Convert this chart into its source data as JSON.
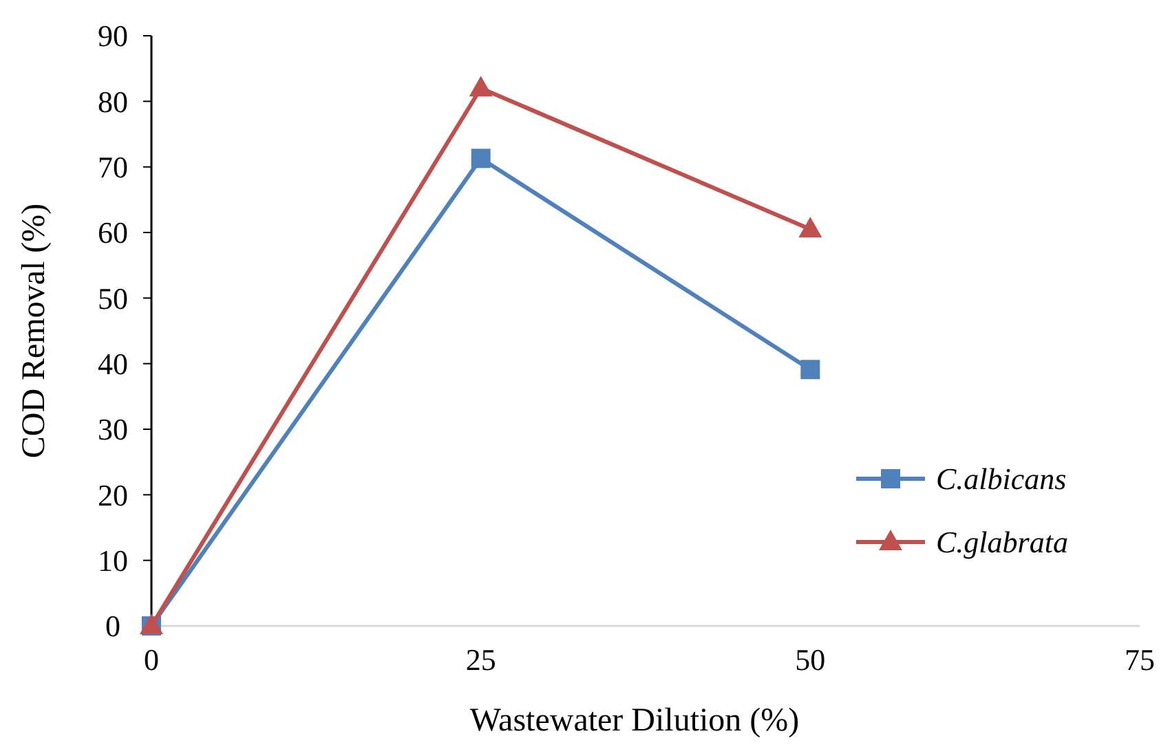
{
  "chart_data": {
    "type": "line",
    "xlabel": "Wastewater Dilution (%)",
    "ylabel": "COD Removal (%)",
    "x": [
      0,
      25,
      50
    ],
    "xlim": [
      0,
      75
    ],
    "xticks": [
      0,
      25,
      50,
      75
    ],
    "ylim": [
      0,
      90
    ],
    "yticks": [
      0,
      10,
      20,
      30,
      40,
      50,
      60,
      70,
      80,
      90
    ],
    "grid": false,
    "legend": "right",
    "line_style": "solid",
    "series": [
      {
        "name": "C.albicans",
        "color": "#4f81bd",
        "marker": "square",
        "values": [
          0,
          71.3,
          39.1
        ]
      },
      {
        "name": "C.glabrata",
        "color": "#c0504d",
        "marker": "triangle",
        "values": [
          0,
          82,
          60.5
        ]
      }
    ]
  }
}
